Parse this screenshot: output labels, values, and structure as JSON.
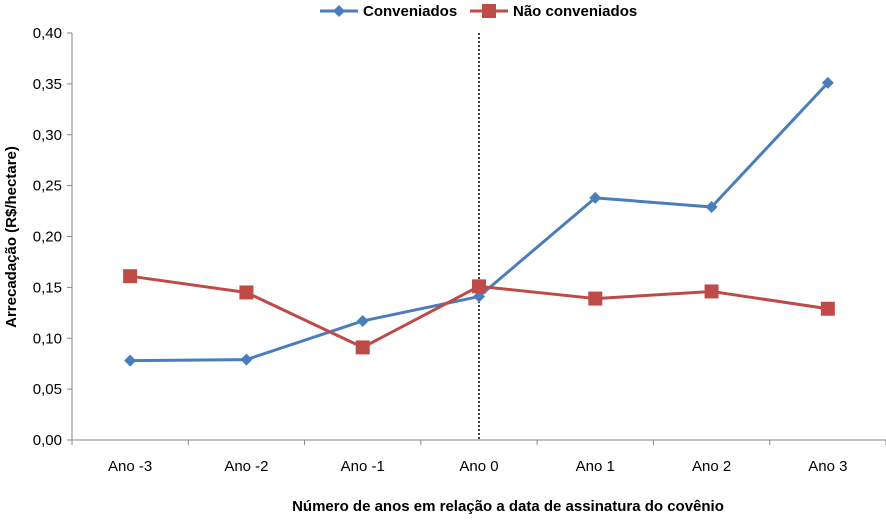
{
  "chart_data": {
    "type": "line",
    "title": "",
    "xlabel": "Número de anos em relação a data de assinatura do covênio",
    "ylabel": "Arrecadação (R$/hectare)",
    "categories": [
      "Ano -3",
      "Ano -2",
      "Ano -1",
      "Ano 0",
      "Ano 1",
      "Ano 2",
      "Ano 3"
    ],
    "ylim": [
      0,
      0.4
    ],
    "yticks": [
      "0,00",
      "0,05",
      "0,10",
      "0,15",
      "0,20",
      "0,25",
      "0,30",
      "0,35",
      "0,40"
    ],
    "reference_line_at": "Ano 0",
    "legend_position": "top",
    "series": [
      {
        "name": "Conveniados",
        "values": [
          0.078,
          0.079,
          0.117,
          0.141,
          0.238,
          0.229,
          0.351
        ],
        "color": "#4a7ebb",
        "marker": "diamond"
      },
      {
        "name": "Não conveniados",
        "values": [
          0.161,
          0.145,
          0.091,
          0.151,
          0.139,
          0.146,
          0.129
        ],
        "color": "#be4b48",
        "marker": "square"
      }
    ]
  }
}
